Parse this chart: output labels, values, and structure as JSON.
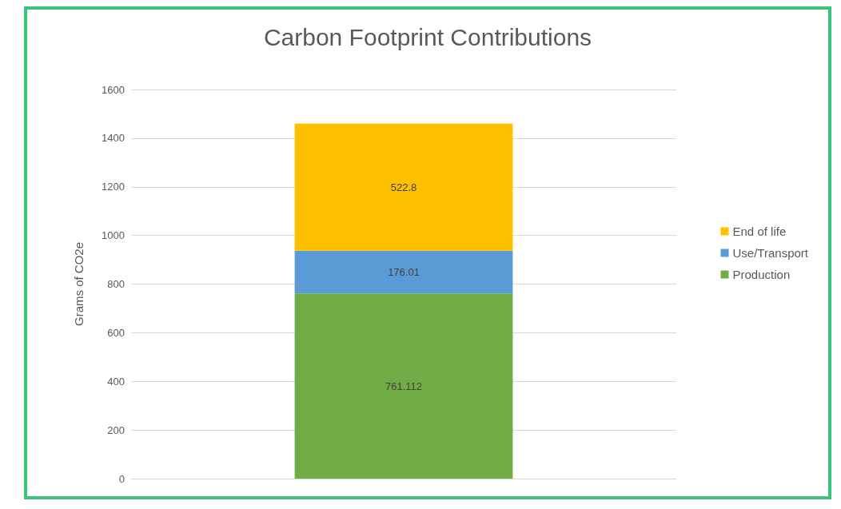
{
  "chart_data": {
    "type": "bar",
    "title": "Carbon Footprint Contributions",
    "ylabel": "Grams of CO2e",
    "categories": [
      null
    ],
    "stacked": true,
    "series": [
      {
        "name": "Production",
        "color": "#70ad47",
        "values": [
          761.112
        ]
      },
      {
        "name": "Use/Transport",
        "color": "#5b9bd5",
        "values": [
          176.01
        ]
      },
      {
        "name": "End of life",
        "color": "#ffc000",
        "values": [
          522.8
        ]
      }
    ],
    "ylim": [
      0,
      1600
    ],
    "yticks": [
      0,
      200,
      400,
      600,
      800,
      1000,
      1200,
      1400,
      1600
    ],
    "grid": "y",
    "legend": "right",
    "data_labels": true
  }
}
